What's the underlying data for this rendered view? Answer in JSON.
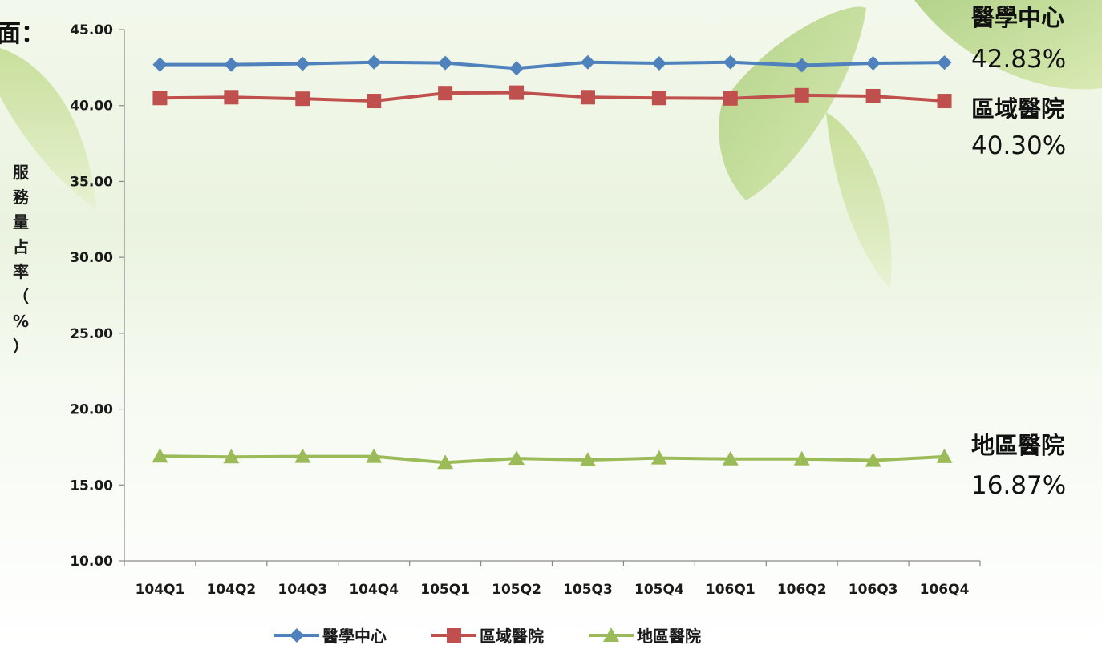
{
  "chart_data": {
    "type": "line",
    "categories": [
      "104Q1",
      "104Q2",
      "104Q3",
      "104Q4",
      "105Q1",
      "105Q2",
      "105Q3",
      "105Q4",
      "106Q1",
      "106Q2",
      "106Q3",
      "106Q4"
    ],
    "series": [
      {
        "name": "醫學中心",
        "color": "#4f81bd",
        "marker": "diamond",
        "values": [
          42.7,
          42.7,
          42.75,
          42.85,
          42.8,
          42.45,
          42.85,
          42.78,
          42.85,
          42.65,
          42.78,
          42.83
        ],
        "end_label_name": "醫學中心",
        "end_label_value": "42.83%"
      },
      {
        "name": "區域醫院",
        "color": "#c0504d",
        "marker": "square",
        "values": [
          40.5,
          40.55,
          40.45,
          40.3,
          40.82,
          40.85,
          40.55,
          40.5,
          40.47,
          40.68,
          40.62,
          40.3
        ],
        "end_label_name": "區域醫院",
        "end_label_value": "40.30%"
      },
      {
        "name": "地區醫院",
        "color": "#9bbb59",
        "marker": "triangle",
        "values": [
          16.9,
          16.85,
          16.88,
          16.88,
          16.48,
          16.75,
          16.65,
          16.78,
          16.72,
          16.72,
          16.62,
          16.87
        ],
        "end_label_name": "地區醫院",
        "end_label_value": "16.87%"
      }
    ],
    "ylabel": "服務量占率（%）",
    "ylim": [
      10,
      45
    ],
    "yticks": [
      "10.00",
      "15.00",
      "20.00",
      "25.00",
      "30.00",
      "35.00",
      "40.00",
      "45.00"
    ],
    "legend_position": "bottom",
    "grid": false,
    "cut_off_title": "面："
  }
}
